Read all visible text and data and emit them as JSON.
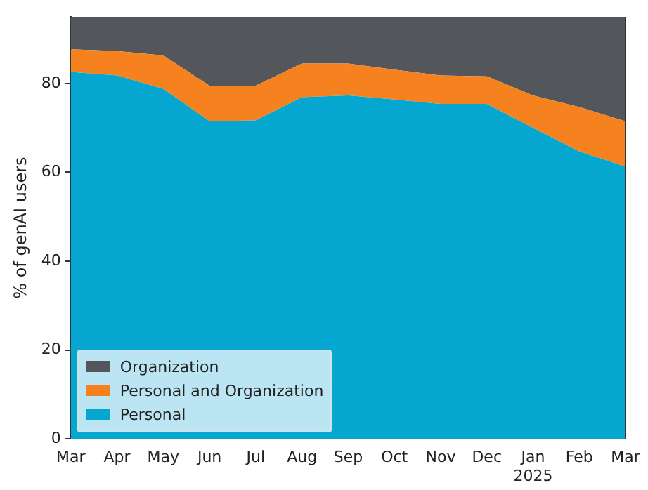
{
  "chart_data": {
    "type": "area",
    "stacked": true,
    "ylabel": "% of genAI users",
    "categories": [
      "Mar",
      "Apr",
      "May",
      "Jun",
      "Jul",
      "Aug",
      "Sep",
      "Oct",
      "Nov",
      "Dec",
      "Jan\n2025",
      "Feb",
      "Mar"
    ],
    "ylim": [
      0,
      95
    ],
    "yticks": [
      0,
      20,
      40,
      60,
      80
    ],
    "grid": false,
    "legend": "bottom left",
    "series": [
      {
        "name": "Personal",
        "color": "#05a6cf",
        "values": [
          82.6,
          81.8,
          78.8,
          71.5,
          71.7,
          76.9,
          77.3,
          76.4,
          75.4,
          75.4,
          70,
          64.7,
          61.3
        ]
      },
      {
        "name": "Personal and Organization",
        "color": "#f5821f",
        "values": [
          5.1,
          5.5,
          7.5,
          8,
          7.8,
          7.6,
          7.2,
          6.7,
          6.4,
          6.2,
          7.3,
          10,
          10.2
        ]
      },
      {
        "name": "Organization",
        "color": "#53575c",
        "values": [
          7.3,
          7.7,
          8.7,
          15.5,
          15.5,
          10.5,
          10.5,
          11.9,
          13.2,
          13.4,
          17.7,
          20.3,
          23.5
        ]
      }
    ]
  }
}
